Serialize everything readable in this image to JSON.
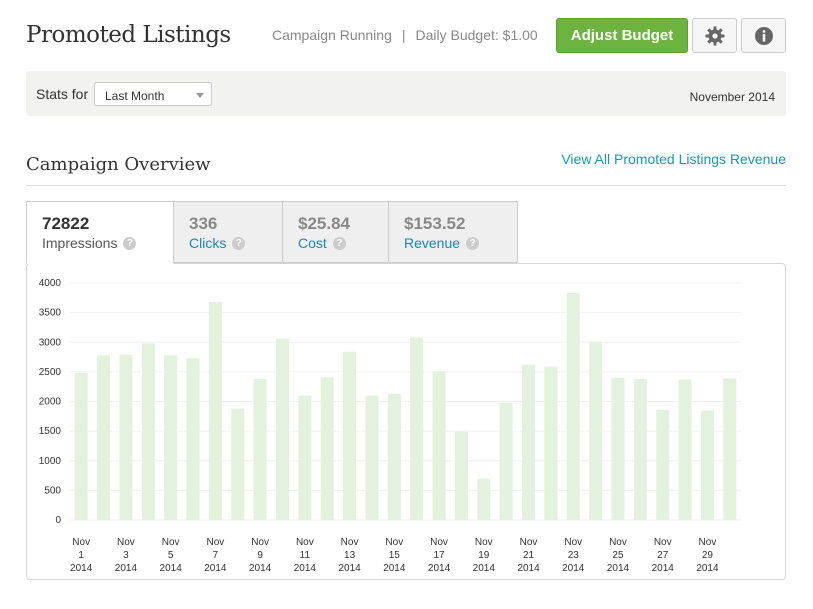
{
  "header": {
    "title": "Promoted Listings",
    "status": "Campaign Running",
    "separator": "|",
    "daily_budget": "Daily Budget: $1.00",
    "adjust_label": "Adjust Budget"
  },
  "stats": {
    "label": "Stats for",
    "period": "Last Month",
    "month": "November 2014"
  },
  "overview": {
    "title": "Campaign Overview",
    "link": "View All Promoted Listings Revenue"
  },
  "tabs": [
    {
      "value": "72822",
      "label": "Impressions"
    },
    {
      "value": "336",
      "label": "Clicks"
    },
    {
      "value": "$25.84",
      "label": "Cost"
    },
    {
      "value": "$153.52",
      "label": "Revenue"
    }
  ],
  "colors": {
    "accent": "#6db33f",
    "link": "#1a9aaa",
    "bar": "#e3f2dc"
  },
  "chart_data": {
    "type": "bar",
    "ylim": [
      0,
      4000
    ],
    "yticks": [
      0,
      500,
      1000,
      1500,
      2000,
      2500,
      3000,
      3500,
      4000
    ],
    "categories": [
      "Nov 1 2014",
      "Nov 2 2014",
      "Nov 3 2014",
      "Nov 4 2014",
      "Nov 5 2014",
      "Nov 6 2014",
      "Nov 7 2014",
      "Nov 8 2014",
      "Nov 9 2014",
      "Nov 10 2014",
      "Nov 11 2014",
      "Nov 12 2014",
      "Nov 13 2014",
      "Nov 14 2014",
      "Nov 15 2014",
      "Nov 16 2014",
      "Nov 17 2014",
      "Nov 18 2014",
      "Nov 19 2014",
      "Nov 20 2014",
      "Nov 21 2014",
      "Nov 22 2014",
      "Nov 23 2014",
      "Nov 24 2014",
      "Nov 25 2014",
      "Nov 26 2014",
      "Nov 27 2014",
      "Nov 28 2014",
      "Nov 29 2014",
      "Nov 30 2014"
    ],
    "xtick_labels": [
      {
        "index": 0,
        "line1": "Nov",
        "line2": "1",
        "line3": "2014"
      },
      {
        "index": 2,
        "line1": "Nov",
        "line2": "3",
        "line3": "2014"
      },
      {
        "index": 4,
        "line1": "Nov",
        "line2": "5",
        "line3": "2014"
      },
      {
        "index": 6,
        "line1": "Nov",
        "line2": "7",
        "line3": "2014"
      },
      {
        "index": 8,
        "line1": "Nov",
        "line2": "9",
        "line3": "2014"
      },
      {
        "index": 10,
        "line1": "Nov",
        "line2": "11",
        "line3": "2014"
      },
      {
        "index": 12,
        "line1": "Nov",
        "line2": "13",
        "line3": "2014"
      },
      {
        "index": 14,
        "line1": "Nov",
        "line2": "15",
        "line3": "2014"
      },
      {
        "index": 16,
        "line1": "Nov",
        "line2": "17",
        "line3": "2014"
      },
      {
        "index": 18,
        "line1": "Nov",
        "line2": "19",
        "line3": "2014"
      },
      {
        "index": 20,
        "line1": "Nov",
        "line2": "21",
        "line3": "2014"
      },
      {
        "index": 22,
        "line1": "Nov",
        "line2": "23",
        "line3": "2014"
      },
      {
        "index": 24,
        "line1": "Nov",
        "line2": "25",
        "line3": "2014"
      },
      {
        "index": 26,
        "line1": "Nov",
        "line2": "27",
        "line3": "2014"
      },
      {
        "index": 28,
        "line1": "Nov",
        "line2": "29",
        "line3": "2014"
      }
    ],
    "values": [
      2480,
      2780,
      2790,
      2980,
      2780,
      2730,
      3680,
      1880,
      2380,
      3060,
      2100,
      2410,
      2840,
      2100,
      2130,
      3080,
      2510,
      1490,
      700,
      1980,
      2620,
      2590,
      3830,
      3010,
      2400,
      2380,
      1860,
      2370,
      1850,
      2390
    ],
    "grid": true
  }
}
